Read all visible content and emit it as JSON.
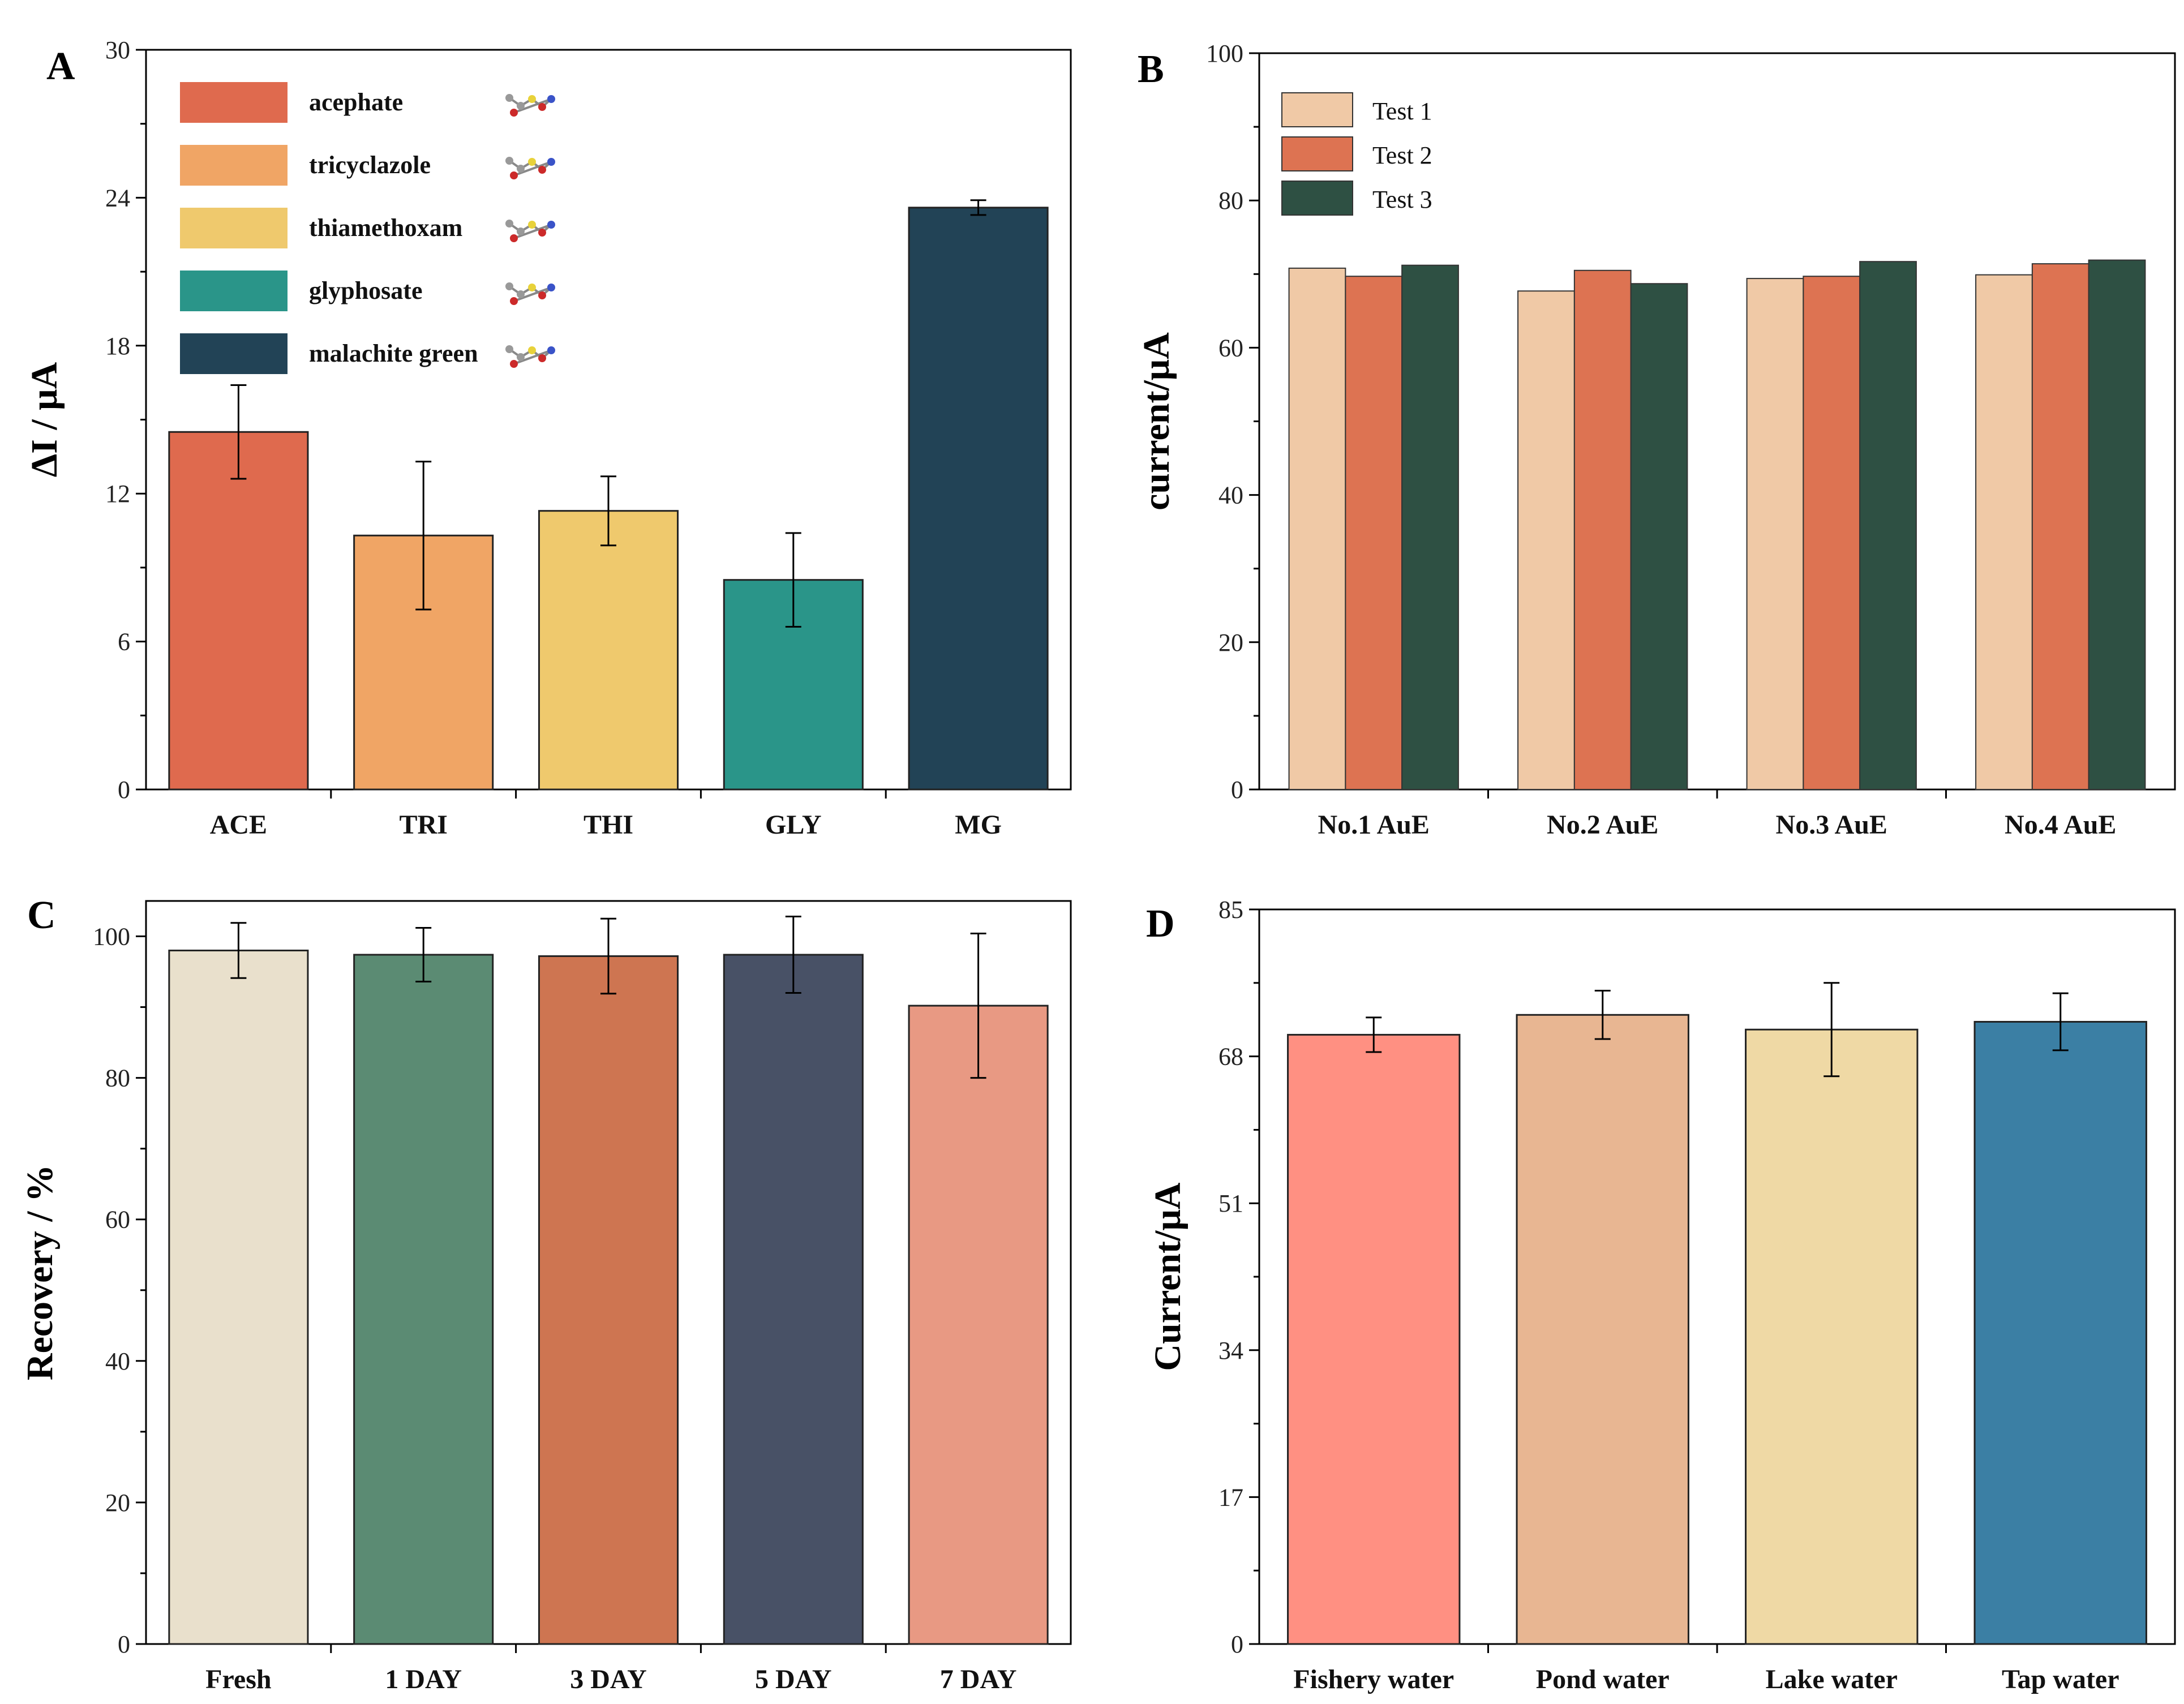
{
  "chart_data": [
    {
      "panel": "A",
      "type": "bar",
      "categories": [
        "ACE",
        "TRI",
        "THI",
        "GLY",
        "MG"
      ],
      "values": [
        14.5,
        10.3,
        11.3,
        8.5,
        23.6
      ],
      "errors": [
        1.9,
        3.0,
        1.4,
        1.9,
        0.3
      ],
      "colors": [
        "#df6a4e",
        "#f0a565",
        "#efc96d",
        "#2a9589",
        "#224356"
      ],
      "ylabel": "ΔI / μA",
      "ylim": [
        0,
        30
      ],
      "yticks": [
        "0",
        "6",
        "12",
        "18",
        "24",
        "30"
      ],
      "legend": [
        "acephate",
        "tricyclazole",
        "thiamethoxam",
        "glyphosate",
        "malachite green"
      ],
      "legend_position": "top-left"
    },
    {
      "panel": "B",
      "type": "bar",
      "categories": [
        "No.1 AuE",
        "No.2 AuE",
        "No.3 AuE",
        "No.4 AuE"
      ],
      "series": [
        {
          "name": "Test 1",
          "values": [
            70.8,
            67.7,
            69.4,
            69.9
          ],
          "color": "#f0c9a6"
        },
        {
          "name": "Test 2",
          "values": [
            69.7,
            70.5,
            69.7,
            71.4
          ],
          "color": "#dd7352"
        },
        {
          "name": "Test 3",
          "values": [
            71.2,
            68.7,
            71.7,
            71.9
          ],
          "color": "#2e5043"
        }
      ],
      "ylabel": "current/μA",
      "ylim": [
        0,
        100
      ],
      "yticks": [
        "0",
        "20",
        "40",
        "60",
        "80",
        "100"
      ],
      "legend_position": "top-left"
    },
    {
      "panel": "C",
      "type": "bar",
      "categories": [
        "Fresh",
        "1 DAY",
        "3 DAY",
        "5 DAY",
        "7 DAY"
      ],
      "values": [
        98.0,
        97.4,
        97.2,
        97.4,
        90.2
      ],
      "errors": [
        3.9,
        3.8,
        5.3,
        5.4,
        10.2
      ],
      "colors": [
        "#e9e0cc",
        "#5b8b73",
        "#ce7551",
        "#485166",
        "#e89983"
      ],
      "ylabel": "Recovery / %",
      "ylim": [
        0,
        105
      ],
      "yticks": [
        "0",
        "20",
        "40",
        "60",
        "80",
        "100"
      ]
    },
    {
      "panel": "D",
      "type": "bar",
      "categories": [
        "Fishery water",
        "Pond water",
        "Lake water",
        "Tap water"
      ],
      "values": [
        70.5,
        72.8,
        71.1,
        72.0
      ],
      "errors": [
        2.0,
        2.8,
        5.4,
        3.3
      ],
      "colors": [
        "#ff9082",
        "#e8b692",
        "#efd9a5",
        "#3b7fa4"
      ],
      "ylabel": "Current/μA",
      "ylim": [
        0,
        85
      ],
      "yticks": [
        "0",
        "17",
        "34",
        "51",
        "68",
        "85"
      ]
    }
  ]
}
